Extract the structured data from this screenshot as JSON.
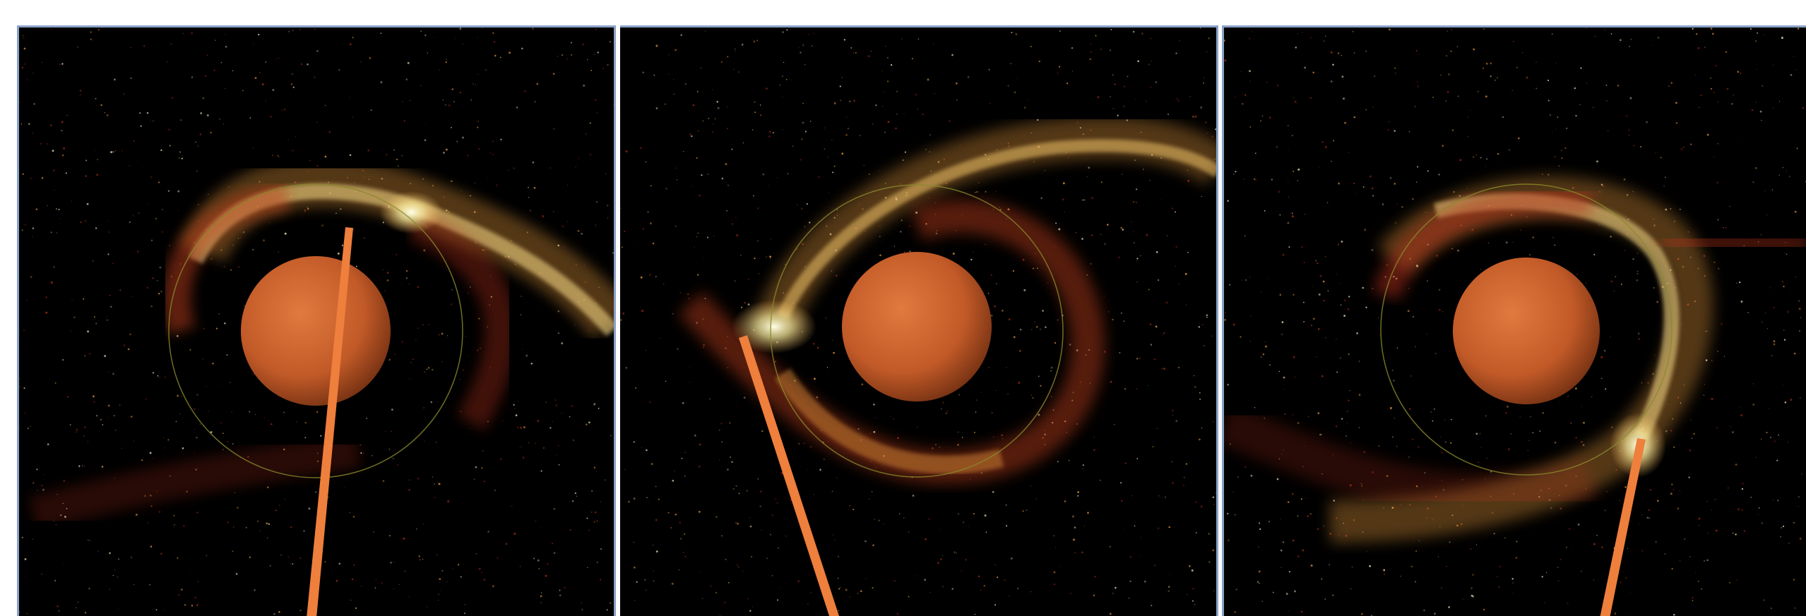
{
  "figure": {
    "panels": [
      {
        "id": "p1",
        "label": ""
      },
      {
        "id": "p2",
        "label": ""
      },
      {
        "id": "p3",
        "label": ""
      }
    ],
    "colors": {
      "background": "#000000",
      "frame": "#8aa2c8",
      "planet": "#c8602c",
      "beam": "#ee7f3c",
      "debris_hot": "#fff6c8",
      "debris_warm": "#f0a040",
      "debris_cool": "#b8301a",
      "orbit_ring": "#8a8a2a"
    },
    "icons": [
      "planet",
      "orbit-ring",
      "debris-stream",
      "beam"
    ]
  }
}
